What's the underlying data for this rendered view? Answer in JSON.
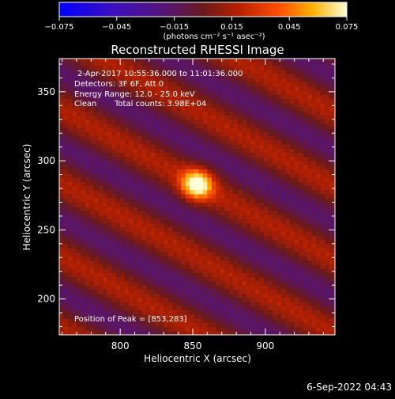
{
  "chart_data": {
    "type": "heatmap",
    "title": "Reconstructed RHESSI Image",
    "xlabel": "Heliocentric X (arcsec)",
    "ylabel": "Heliocentric Y (arcsec)",
    "xlim": [
      758,
      948
    ],
    "ylim": [
      174,
      374
    ],
    "x_ticks": [
      800,
      850,
      900
    ],
    "y_ticks": [
      200,
      250,
      300,
      350
    ],
    "colorbar": {
      "range": [
        -0.075,
        0.075
      ],
      "ticks": [
        "−0.075",
        "−0.045",
        "−0.015",
        "0.015",
        "0.045",
        "0.075"
      ],
      "unit_label": "(photons cm⁻² s⁻¹ asec⁻²)"
    },
    "peak": {
      "x": 853,
      "y": 283
    },
    "stripes": {
      "angle_deg": 150,
      "period_arcsec": 46
    },
    "limb_visible": true
  },
  "info": {
    "time_range": "2-Apr-2017 10:55:36.000 to 11:01:36.000",
    "detectors": "Detectors: 3F 6F, Att 0",
    "energy": "Energy Range: 12.0 - 25.0 keV",
    "method": "Clean",
    "counts": "Total counts: 3.98E+04",
    "peak_text": "Position of Peak = [853,283]"
  },
  "timestamp": "6-Sep-2022 04:43"
}
